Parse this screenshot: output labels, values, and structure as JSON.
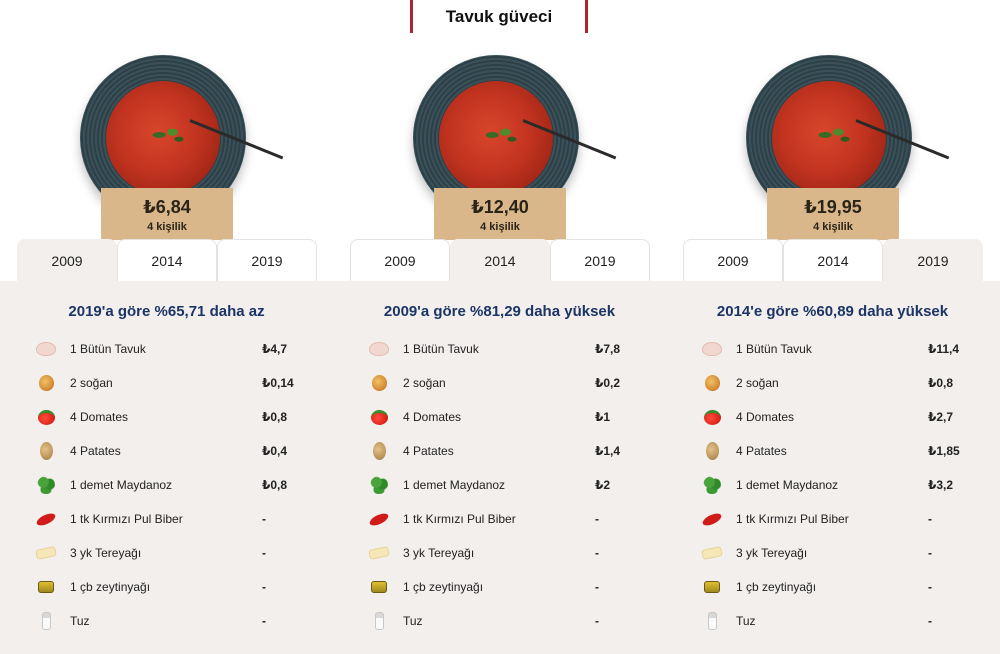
{
  "header": {
    "title": "Tavuk güveci"
  },
  "columns": [
    {
      "price": "₺6,84",
      "serving": "4 kişilik",
      "tabs": [
        "2009",
        "2014",
        "2019"
      ],
      "active_tab": "2009",
      "comparison": "2019'a göre %65,71 daha az",
      "ingredients": [
        {
          "name": "1 Bütün Tavuk",
          "price": "₺4,7",
          "icon": "chicken-icon"
        },
        {
          "name": "2 soğan",
          "price": "₺0,14",
          "icon": "onion-icon"
        },
        {
          "name": "4 Domates",
          "price": "₺0,8",
          "icon": "tomato-icon"
        },
        {
          "name": "4 Patates",
          "price": "₺0,4",
          "icon": "potato-icon"
        },
        {
          "name": "1 demet Maydanoz",
          "price": "₺0,8",
          "icon": "parsley-icon"
        },
        {
          "name": "1 tk Kırmızı Pul Biber",
          "price": "-",
          "icon": "red-pepper-icon"
        },
        {
          "name": "3 yk Tereyağı",
          "price": "-",
          "icon": "butter-icon"
        },
        {
          "name": "1 çb zeytinyağı",
          "price": "-",
          "icon": "olive-oil-icon"
        },
        {
          "name": "Tuz",
          "price": "-",
          "icon": "salt-icon"
        }
      ]
    },
    {
      "price": "₺12,40",
      "serving": "4 kişilik",
      "tabs": [
        "2009",
        "2014",
        "2019"
      ],
      "active_tab": "2014",
      "comparison": "2009'a göre %81,29 daha yüksek",
      "ingredients": [
        {
          "name": "1 Bütün Tavuk",
          "price": "₺7,8",
          "icon": "chicken-icon"
        },
        {
          "name": "2 soğan",
          "price": "₺0,2",
          "icon": "onion-icon"
        },
        {
          "name": "4 Domates",
          "price": "₺1",
          "icon": "tomato-icon"
        },
        {
          "name": "4 Patates",
          "price": "₺1,4",
          "icon": "potato-icon"
        },
        {
          "name": "1 demet Maydanoz",
          "price": "₺2",
          "icon": "parsley-icon"
        },
        {
          "name": "1 tk Kırmızı Pul Biber",
          "price": "-",
          "icon": "red-pepper-icon"
        },
        {
          "name": "3 yk Tereyağı",
          "price": "-",
          "icon": "butter-icon"
        },
        {
          "name": "1 çb zeytinyağı",
          "price": "-",
          "icon": "olive-oil-icon"
        },
        {
          "name": "Tuz",
          "price": "-",
          "icon": "salt-icon"
        }
      ]
    },
    {
      "price": "₺19,95",
      "serving": "4 kişilik",
      "tabs": [
        "2009",
        "2014",
        "2019"
      ],
      "active_tab": "2019",
      "comparison": "2014'e göre %60,89 daha yüksek",
      "ingredients": [
        {
          "name": "1 Bütün Tavuk",
          "price": "₺11,4",
          "icon": "chicken-icon"
        },
        {
          "name": "2 soğan",
          "price": "₺0,8",
          "icon": "onion-icon"
        },
        {
          "name": "4 Domates",
          "price": "₺2,7",
          "icon": "tomato-icon"
        },
        {
          "name": "4 Patates",
          "price": "₺1,85",
          "icon": "potato-icon"
        },
        {
          "name": "1 demet Maydanoz",
          "price": "₺3,2",
          "icon": "parsley-icon"
        },
        {
          "name": "1 tk Kırmızı Pul Biber",
          "price": "-",
          "icon": "red-pepper-icon"
        },
        {
          "name": "3 yk Tereyağı",
          "price": "-",
          "icon": "butter-icon"
        },
        {
          "name": "1 çb zeytinyağı",
          "price": "-",
          "icon": "olive-oil-icon"
        },
        {
          "name": "Tuz",
          "price": "-",
          "icon": "salt-icon"
        }
      ]
    }
  ],
  "colors": {
    "accent": "#b1242e",
    "price_card": "#d9b78a",
    "comparison_text": "#1c3566",
    "panel_background": "#f2efed"
  }
}
